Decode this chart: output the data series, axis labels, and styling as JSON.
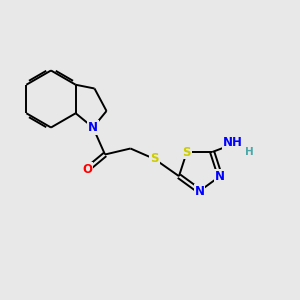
{
  "bg_color": "#e8e8e8",
  "atom_colors": {
    "C": "#000000",
    "N": "#0000ff",
    "O": "#ff0000",
    "S": "#cccc00",
    "H": "#4ca8a8"
  },
  "bond_color": "#000000",
  "figsize": [
    3.0,
    3.0
  ],
  "dpi": 100,
  "lw": 1.4,
  "fontsize": 8.5
}
